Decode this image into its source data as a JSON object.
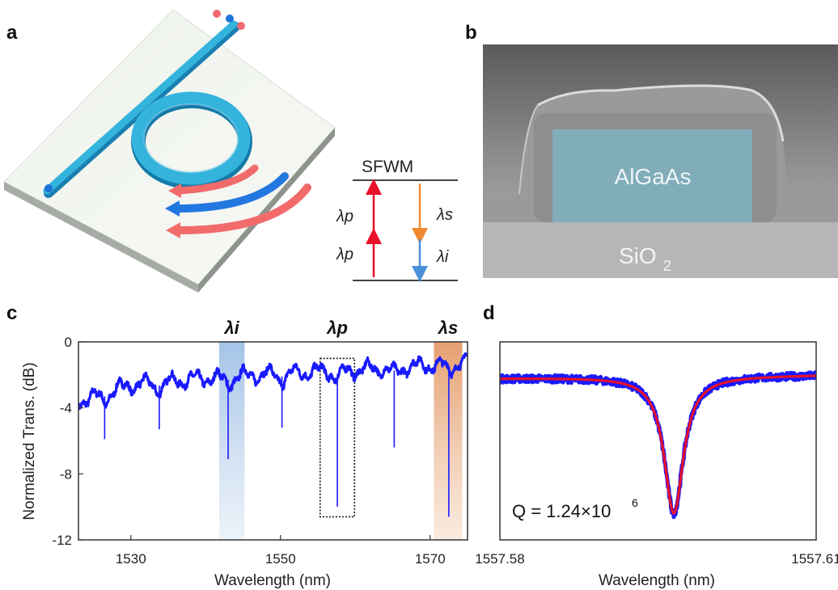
{
  "panels": {
    "a": {
      "letter": "a",
      "scheme_title": "SFWM",
      "pump_label_1": "λp",
      "pump_label_2": "λp",
      "signal_label": "λs",
      "idler_label": "λi"
    },
    "b": {
      "letter": "b",
      "core_label": "AlGaAs",
      "substrate_label": "SiO",
      "substrate_subscript": "2"
    },
    "c": {
      "letter": "c"
    },
    "d": {
      "letter": "d",
      "q_label": "Q = 1.24×10",
      "q_exponent": "6"
    }
  },
  "colors": {
    "trace": "#1a1aff",
    "fit": "#e8102a",
    "idler_band": "#a9c6e8",
    "signal_band": "#e8a57a",
    "ring": "#34b4dc",
    "pump_arrow": "#e8102a",
    "signal_arrow": "#f08a30",
    "idler_arrow": "#4a90d9"
  },
  "chart_data": [
    {
      "type": "line",
      "panel": "c",
      "xlabel": "Wavelength (nm)",
      "ylabel": "Normalized Trans. (dB)",
      "xlim": [
        1523,
        1575
      ],
      "ylim": [
        -12,
        0
      ],
      "x_ticks": [
        1530,
        1550,
        1570
      ],
      "y_ticks": [
        0,
        -4,
        -8,
        -12
      ],
      "x_tick_labels": [
        "1530",
        "1550",
        "1570"
      ],
      "y_tick_labels": [
        "0",
        "-4",
        "-8",
        "-12"
      ],
      "baseline": {
        "x": [
          1523,
          1530,
          1540,
          1550,
          1560,
          1570,
          1575
        ],
        "y": [
          -3.6,
          -2.6,
          -2.2,
          -1.9,
          -1.7,
          -1.4,
          -1.2
        ]
      },
      "resonances": [
        {
          "x": 1526.5,
          "depth": -5.9
        },
        {
          "x": 1533.8,
          "depth": -5.3
        },
        {
          "x": 1543.0,
          "depth": -7.1
        },
        {
          "x": 1550.2,
          "depth": -5.2
        },
        {
          "x": 1557.6,
          "depth": -10.0
        },
        {
          "x": 1565.2,
          "depth": -6.4
        },
        {
          "x": 1572.5,
          "depth": -10.6
        }
      ],
      "highlights": [
        {
          "label": "λi",
          "x_range": [
            1541.8,
            1545.2
          ],
          "style": "idler"
        },
        {
          "label": "λp",
          "x_range": [
            1555.3,
            1559.9
          ],
          "style": "pump"
        },
        {
          "label": "λs",
          "x_range": [
            1570.5,
            1574.3
          ],
          "style": "signal"
        }
      ]
    },
    {
      "type": "line",
      "panel": "d",
      "xlabel": "Wavelength (nm)",
      "xlim": [
        1557.58,
        1557.61
      ],
      "x_ticks": [
        1557.58,
        1557.61
      ],
      "x_tick_labels": [
        "1557.58",
        "1557.61"
      ],
      "ylim": [
        -12,
        0
      ],
      "series": [
        {
          "name": "",
          "kind": "measured",
          "baseline_start": -2.2,
          "baseline_end": -2.0,
          "dip_center": 1557.5965,
          "dip_depth": -10.4,
          "half_width": 0.0011
        },
        {
          "name": "",
          "kind": "fit",
          "baseline_start": -2.2,
          "baseline_end": -2.0,
          "dip_center": 1557.5965,
          "dip_depth": -10.4,
          "half_width": 0.0011
        }
      ]
    }
  ]
}
